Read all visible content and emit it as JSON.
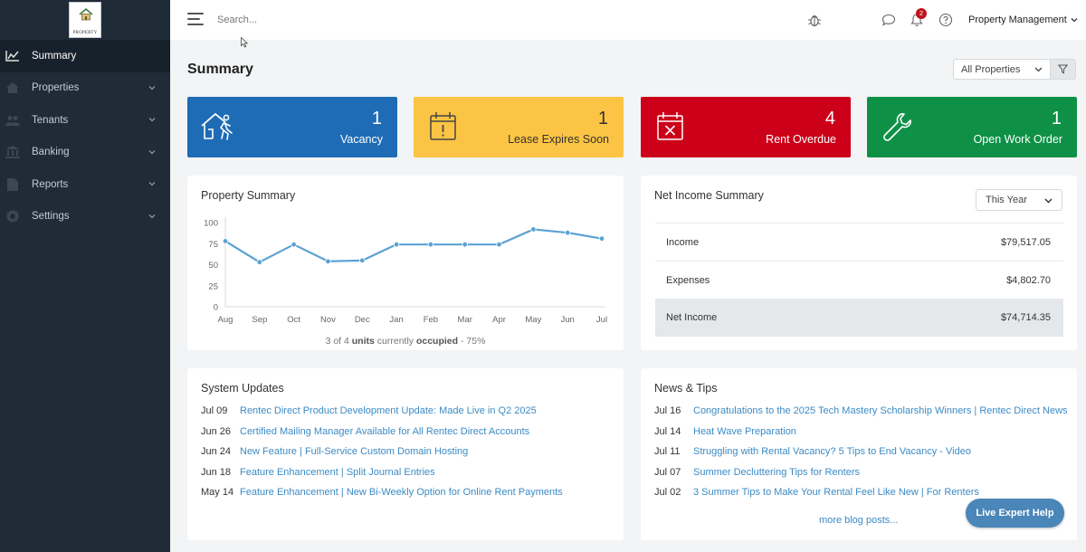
{
  "logo": {
    "text": "PROPERTY"
  },
  "sidebar": {
    "items": [
      {
        "label": "Summary",
        "icon": "chart-icon"
      },
      {
        "label": "Properties",
        "icon": "home-icon"
      },
      {
        "label": "Tenants",
        "icon": "users-icon"
      },
      {
        "label": "Banking",
        "icon": "bank-icon"
      },
      {
        "label": "Reports",
        "icon": "file-icon"
      },
      {
        "label": "Settings",
        "icon": "gear-icon"
      }
    ]
  },
  "topbar": {
    "search_placeholder": "Search...",
    "notification_count": "2",
    "account_label": "Property Management"
  },
  "main": {
    "title": "Summary",
    "property_filter": "All Properties",
    "cards": [
      {
        "count": "1",
        "label": "Vacancy",
        "color": "#1e6cb5"
      },
      {
        "count": "1",
        "label": "Lease Expires Soon",
        "color": "#fcc444"
      },
      {
        "count": "4",
        "label": "Rent Overdue",
        "color": "#cc0019"
      },
      {
        "count": "1",
        "label": "Open Work Order",
        "color": "#0e9146"
      }
    ]
  },
  "property_summary": {
    "title": "Property Summary",
    "occupancy_prefix": "3 of 4",
    "occupancy_units": "units",
    "occupancy_mid": "currently",
    "occupancy_word": "occupied",
    "occupancy_suffix": "- 75%"
  },
  "chart_data": {
    "type": "line",
    "categories": [
      "Aug",
      "Sep",
      "Oct",
      "Nov",
      "Dec",
      "Jan",
      "Feb",
      "Mar",
      "Apr",
      "May",
      "Jun",
      "Jul"
    ],
    "values": [
      78,
      53,
      74,
      54,
      55,
      74,
      74,
      74,
      74,
      92,
      88,
      81
    ],
    "ylim": [
      0,
      100
    ],
    "yticks": [
      0,
      25,
      50,
      75,
      100
    ],
    "grid": false,
    "color": "#5aa2d4"
  },
  "net_income": {
    "title": "Net Income Summary",
    "period": "This Year",
    "rows": [
      {
        "label": "Income",
        "value": "$79,517.05"
      },
      {
        "label": "Expenses",
        "value": "$4,802.70"
      },
      {
        "label": "Net Income",
        "value": "$74,714.35"
      }
    ]
  },
  "system_updates": {
    "title": "System Updates",
    "items": [
      {
        "date": "Jul 09",
        "text": "Rentec Direct Product Development Update: Made Live in Q2 2025"
      },
      {
        "date": "Jun 26",
        "text": "Certified Mailing Manager Available for All Rentec Direct Accounts"
      },
      {
        "date": "Jun 24",
        "text": "New Feature | Full-Service Custom Domain Hosting"
      },
      {
        "date": "Jun 18",
        "text": "Feature Enhancement | Split Journal Entries"
      },
      {
        "date": "May 14",
        "text": "Feature Enhancement | New Bi-Weekly Option for Online Rent Payments"
      }
    ]
  },
  "news": {
    "title": "News & Tips",
    "items": [
      {
        "date": "Jul 16",
        "text": "Congratulations to the 2025 Tech Mastery Scholarship Winners | Rentec Direct News"
      },
      {
        "date": "Jul 14",
        "text": "Heat Wave Preparation"
      },
      {
        "date": "Jul 11",
        "text": "Struggling with Rental Vacancy? 5 Tips to End Vacancy - Video"
      },
      {
        "date": "Jul 07",
        "text": "Summer Decluttering Tips for Renters"
      },
      {
        "date": "Jul 02",
        "text": "3 Summer Tips to Make Your Rental Feel Like New | For Renters"
      }
    ],
    "more_label": "more blog posts..."
  },
  "help": {
    "label": "Live Expert Help"
  }
}
